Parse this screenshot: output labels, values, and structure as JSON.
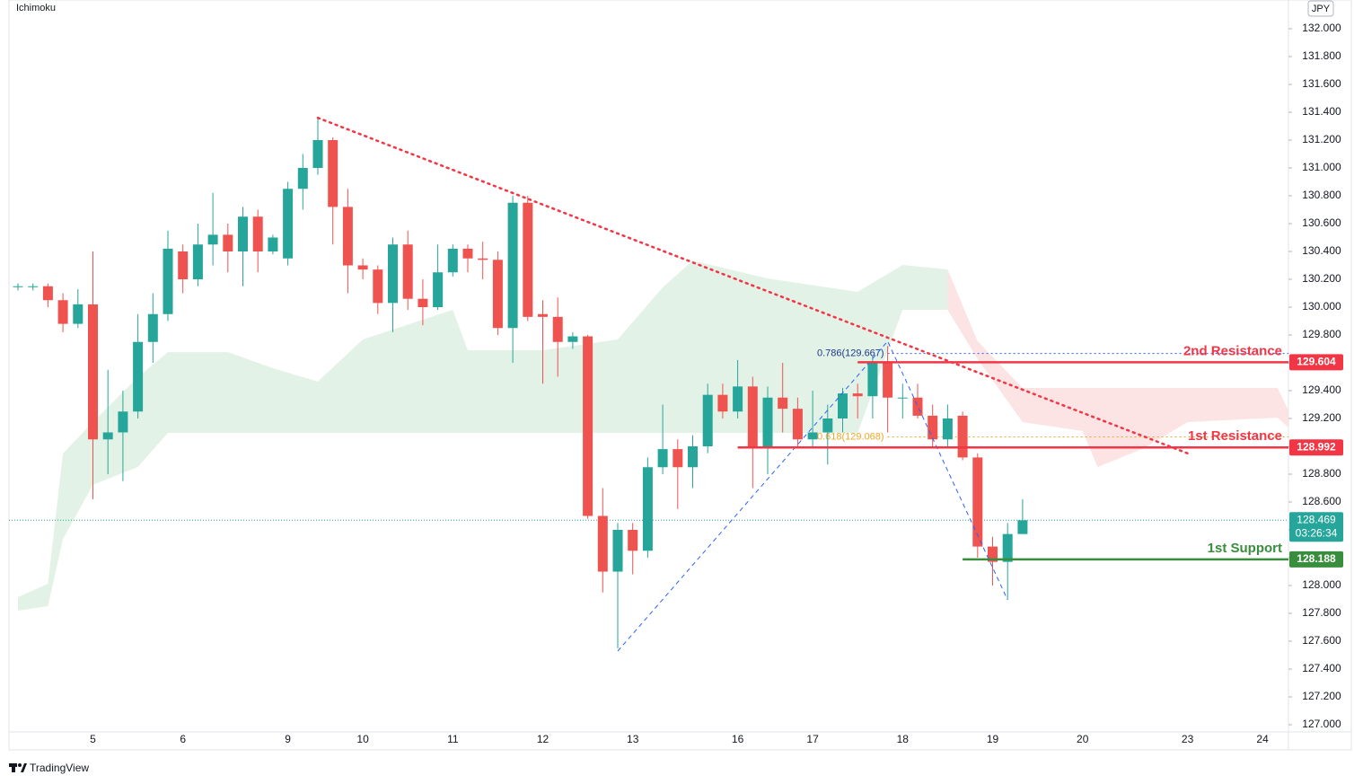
{
  "chart_data": {
    "type": "candlestick",
    "indicator": "Ichimoku",
    "currency": "JPY",
    "brand": "TradingView",
    "up_color": "#26a69a",
    "down_color": "#ef5350",
    "categories": [
      null,
      null,
      null,
      null,
      null,
      "5",
      null,
      null,
      null,
      null,
      null,
      "6",
      null,
      null,
      null,
      null,
      null,
      null,
      "9",
      null,
      null,
      null,
      null,
      "10",
      null,
      null,
      null,
      null,
      null,
      "11",
      null,
      null,
      null,
      null,
      null,
      "12",
      null,
      null,
      null,
      null,
      null,
      "13",
      null,
      null,
      null,
      null,
      null,
      null,
      "16",
      null,
      null,
      null,
      null,
      "17",
      null,
      null,
      null,
      null,
      null,
      "18",
      null,
      null,
      null,
      null,
      null,
      "19",
      null,
      null,
      null,
      null,
      null,
      "20",
      null,
      null,
      null,
      null,
      null,
      null,
      "23",
      null,
      null,
      null,
      null,
      "24",
      null,
      null
    ],
    "open": [
      130.15,
      130.15,
      130.15,
      130.05,
      129.88,
      130.02,
      129.05,
      129.1,
      129.25,
      129.75,
      129.95,
      130.4,
      130.2,
      130.45,
      130.52,
      130.4,
      130.65,
      130.4,
      130.35,
      130.85,
      131.0,
      131.2,
      130.72,
      130.3,
      130.27,
      130.03,
      130.45,
      130.06,
      130.0,
      130.25,
      130.42,
      130.35,
      130.34,
      129.85,
      130.75,
      129.95,
      129.93,
      129.75,
      129.79,
      128.5,
      128.1,
      128.4,
      128.25,
      128.85,
      128.98,
      128.85,
      129.0,
      129.37,
      129.25,
      129.43,
      129.0,
      129.35,
      129.27,
      129.05,
      129.1,
      129.2,
      129.38,
      129.36,
      129.6,
      129.35,
      129.35,
      129.22,
      129.05,
      129.22,
      128.92,
      128.28,
      128.17,
      128.37,
      null,
      null,
      null,
      null,
      null,
      null,
      null,
      null,
      null,
      null,
      null,
      null,
      null,
      null,
      null,
      null,
      null,
      null
    ],
    "high": [
      130.17,
      130.17,
      130.17,
      130.1,
      130.13,
      130.4,
      129.55,
      129.4,
      129.95,
      130.1,
      130.55,
      130.45,
      130.6,
      130.82,
      130.6,
      130.72,
      130.7,
      130.52,
      130.9,
      131.1,
      131.36,
      131.22,
      130.85,
      130.35,
      130.3,
      130.5,
      130.55,
      130.2,
      130.45,
      130.45,
      130.45,
      130.47,
      130.4,
      130.8,
      130.8,
      130.05,
      130.07,
      129.82,
      129.8,
      128.7,
      128.45,
      128.45,
      128.92,
      129.3,
      129.05,
      129.08,
      129.45,
      129.45,
      129.62,
      129.5,
      129.43,
      129.6,
      129.35,
      129.4,
      129.3,
      129.42,
      129.45,
      129.65,
      129.72,
      129.45,
      129.45,
      129.3,
      129.3,
      129.25,
      128.95,
      128.35,
      128.45,
      128.62,
      null,
      null,
      null,
      null,
      null,
      null,
      null,
      null,
      null,
      null,
      null,
      null,
      null,
      null,
      null,
      null,
      null,
      null
    ],
    "low": [
      130.12,
      130.12,
      130.0,
      129.82,
      129.85,
      128.62,
      128.8,
      128.75,
      129.2,
      129.6,
      129.9,
      130.1,
      130.15,
      130.3,
      130.25,
      130.15,
      130.25,
      130.38,
      130.3,
      130.7,
      130.95,
      130.45,
      130.1,
      130.2,
      129.95,
      129.82,
      129.98,
      129.87,
      129.98,
      130.22,
      130.25,
      130.2,
      129.8,
      129.6,
      129.9,
      129.45,
      129.5,
      129.7,
      128.48,
      127.95,
      127.55,
      128.08,
      128.2,
      128.8,
      128.55,
      128.7,
      128.95,
      129.2,
      129.2,
      128.7,
      128.8,
      129.1,
      129.0,
      129.0,
      128.87,
      129.1,
      129.2,
      129.2,
      129.1,
      129.2,
      129.2,
      129.0,
      129.0,
      128.9,
      128.2,
      128.0,
      127.9,
      128.37,
      null,
      null,
      null,
      null,
      null,
      null,
      null,
      null,
      null,
      null,
      null,
      null,
      null,
      null,
      null,
      null,
      null,
      null
    ],
    "close": [
      130.15,
      130.15,
      130.05,
      129.88,
      130.02,
      129.05,
      129.1,
      129.25,
      129.75,
      129.95,
      130.42,
      130.2,
      130.45,
      130.52,
      130.4,
      130.65,
      130.4,
      130.5,
      130.85,
      131.0,
      131.2,
      130.72,
      130.3,
      130.27,
      130.03,
      130.45,
      130.06,
      130.0,
      130.25,
      130.42,
      130.35,
      130.34,
      129.85,
      130.75,
      129.93,
      129.93,
      129.75,
      129.79,
      128.5,
      128.1,
      128.4,
      128.25,
      128.85,
      128.98,
      128.85,
      129.0,
      129.37,
      129.25,
      129.43,
      129.0,
      129.35,
      129.27,
      129.05,
      129.1,
      129.2,
      129.38,
      129.36,
      129.6,
      129.35,
      129.35,
      129.22,
      129.05,
      129.2,
      128.92,
      128.28,
      128.17,
      128.37,
      128.469,
      null,
      null,
      null,
      null,
      null,
      null,
      null,
      null,
      null,
      null,
      null,
      null,
      null,
      null,
      null,
      null,
      null,
      null
    ],
    "ylim": [
      127,
      132
    ],
    "yticks": [
      {
        "value": 127.0,
        "label": "127.000"
      },
      {
        "value": 127.2,
        "label": "127.200"
      },
      {
        "value": 127.4,
        "label": "127.400"
      },
      {
        "value": 127.6,
        "label": "127.600"
      },
      {
        "value": 127.8,
        "label": "127.800"
      },
      {
        "value": 128.0,
        "label": "128.000"
      },
      {
        "value": 128.2,
        "label": "128.200"
      },
      {
        "value": 128.4,
        "label": "128.400"
      },
      {
        "value": 128.6,
        "label": "128.600"
      },
      {
        "value": 128.8,
        "label": "128.800"
      },
      {
        "value": 129.0,
        "label": "129.000"
      },
      {
        "value": 129.2,
        "label": "129.200"
      },
      {
        "value": 129.4,
        "label": "129.400"
      },
      {
        "value": 129.6,
        "label": "129.600"
      },
      {
        "value": 129.8,
        "label": "129.800"
      },
      {
        "value": 130.0,
        "label": "130.000"
      },
      {
        "value": 130.2,
        "label": "130.200"
      },
      {
        "value": 130.4,
        "label": "130.400"
      },
      {
        "value": 130.6,
        "label": "130.600"
      },
      {
        "value": 130.8,
        "label": "130.800"
      },
      {
        "value": 131.0,
        "label": "131.000"
      },
      {
        "value": 131.2,
        "label": "131.200"
      },
      {
        "value": 131.4,
        "label": "131.400"
      },
      {
        "value": 131.6,
        "label": "131.600"
      },
      {
        "value": 131.8,
        "label": "131.800"
      },
      {
        "value": 132.0,
        "label": "132.000"
      }
    ],
    "cloud": [
      {
        "color": "#e3f2e6",
        "x": [
          0,
          2,
          3,
          5,
          8,
          10,
          14,
          17,
          20,
          23,
          29,
          30,
          35,
          40,
          43,
          45,
          50,
          56,
          59,
          62
        ],
        "upper": [
          127.916,
          128.013,
          128.948,
          129.174,
          129.497,
          129.677,
          129.677,
          129.561,
          129.465,
          129.768,
          129.981,
          129.69,
          129.69,
          129.768,
          130.142,
          130.335,
          130.206,
          130.11,
          130.303,
          130.271
        ],
        "lower": [
          127.819,
          127.852,
          128.335,
          128.723,
          128.852,
          129.097,
          129.097,
          129.097,
          129.097,
          129.097,
          129.097,
          129.097,
          129.097,
          129.097,
          129.097,
          129.097,
          129.097,
          129.097,
          129.981,
          129.981
        ]
      },
      {
        "color": "#fde4e4",
        "x": [
          62,
          64,
          67,
          71,
          72,
          75,
          78,
          84,
          85
        ],
        "upper": [
          130.271,
          129.755,
          129.419,
          129.419,
          129.419,
          129.419,
          129.419,
          129.419,
          129.2
        ],
        "lower": [
          129.981,
          129.626,
          129.174,
          129.11,
          128.852,
          128.981,
          129.174,
          129.206,
          129.11
        ]
      }
    ],
    "trendline": {
      "color": "#f23645",
      "x": [
        20,
        78
      ],
      "values": [
        131.36,
        128.95
      ]
    },
    "fib_swing": {
      "color": "#2962ff",
      "x": [
        40,
        58,
        66
      ],
      "values": [
        127.529,
        129.755,
        127.897
      ]
    },
    "fib_levels": [
      {
        "label": "0.786(129.667)",
        "value": 129.667,
        "color": "#2962ff",
        "start": 58
      },
      {
        "label": "0.618(129.068)",
        "value": 129.068,
        "color": "#f5a623",
        "start": 58
      }
    ],
    "levels": [
      {
        "label": "2nd Resistance",
        "value": 129.604,
        "color": "#f23645",
        "start": 56
      },
      {
        "label": "1st Resistance",
        "value": 128.992,
        "color": "#f23645",
        "start": 48
      },
      {
        "label": "1st Support",
        "value": 128.188,
        "color": "#388e3c",
        "start": 63
      }
    ],
    "last_price": {
      "value": 128.469,
      "countdown": "03:26:34",
      "color": "#26a69a"
    }
  }
}
